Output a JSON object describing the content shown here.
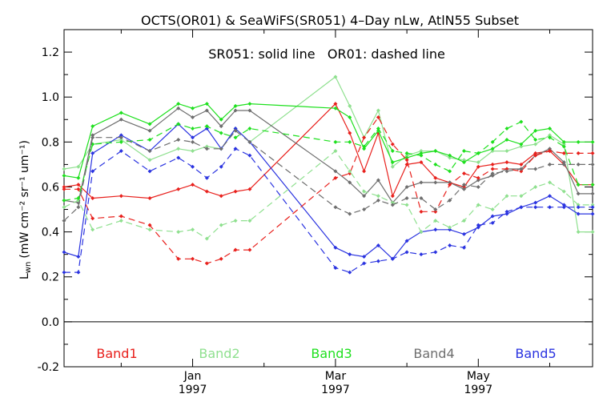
{
  "chart_data": {
    "type": "line",
    "title": "OCTS(OR01) & SeaWiFS(SR051) 4–Day nLw, AtlN55 Subset",
    "subtitle": "SR051: solid line   OR01: dashed line",
    "ylabel": {
      "base": "L",
      "sub": "wn",
      "unit": "(mW cm⁻² sr⁻¹ um⁻¹)"
    },
    "ylim": [
      -0.2,
      1.3
    ],
    "xlim": [
      0,
      37
    ],
    "yticks": [
      "-0.2",
      "0.0",
      "0.2",
      "0.4",
      "0.6",
      "0.8",
      "1.0",
      "1.2"
    ],
    "yticks_values": [
      -0.2,
      0.0,
      0.2,
      0.4,
      0.6,
      0.8,
      1.0,
      1.2
    ],
    "xticks": [
      {
        "x": 9,
        "line1": "Jan",
        "line2": "1997"
      },
      {
        "x": 19,
        "line1": "Mar",
        "line2": "1997"
      },
      {
        "x": 29,
        "line1": "May",
        "line2": "1997"
      }
    ],
    "minor_xticks": [
      4,
      14,
      24,
      34
    ],
    "zero_line": true,
    "x": [
      0,
      1,
      2,
      4,
      6,
      8,
      9,
      10,
      11,
      12,
      13,
      19,
      20,
      21,
      22,
      23,
      24,
      25,
      26,
      27,
      28,
      29,
      30,
      31,
      32,
      33,
      34,
      35,
      36,
      37
    ],
    "legend": [
      {
        "label": "Band1",
        "color": "#e8201c"
      },
      {
        "label": "Band2",
        "color": "#8fe08f"
      },
      {
        "label": "Band3",
        "color": "#1ee01e"
      },
      {
        "label": "Band4",
        "color": "#6e6e6e"
      },
      {
        "label": "Band5",
        "color": "#2a33e0"
      }
    ],
    "series": [
      {
        "name": "Band1",
        "style": "solid",
        "color": "#e8201c",
        "values": [
          0.6,
          0.61,
          0.55,
          0.56,
          0.55,
          0.59,
          0.61,
          0.58,
          0.56,
          0.58,
          0.59,
          0.97,
          0.84,
          0.67,
          0.84,
          0.56,
          0.7,
          0.71,
          0.64,
          0.62,
          0.6,
          0.69,
          0.7,
          0.71,
          0.7,
          0.75,
          0.76,
          0.7,
          0.61,
          0.61
        ]
      },
      {
        "name": "Band2",
        "style": "solid",
        "color": "#8fe08f",
        "values": [
          0.68,
          0.69,
          0.79,
          0.81,
          0.72,
          0.77,
          0.76,
          0.78,
          0.77,
          0.86,
          0.8,
          1.09,
          0.96,
          0.82,
          0.94,
          0.69,
          0.74,
          0.76,
          0.76,
          0.73,
          0.72,
          0.71,
          0.76,
          0.76,
          0.78,
          0.79,
          0.83,
          0.79,
          0.4,
          0.4
        ]
      },
      {
        "name": "Band3",
        "style": "solid",
        "color": "#1ee01e",
        "values": [
          0.65,
          0.64,
          0.87,
          0.93,
          0.88,
          0.97,
          0.95,
          0.97,
          0.9,
          0.96,
          0.97,
          0.95,
          0.91,
          0.77,
          0.85,
          0.71,
          0.73,
          0.75,
          0.76,
          0.74,
          0.71,
          0.75,
          0.77,
          0.81,
          0.79,
          0.85,
          0.86,
          0.8,
          0.8,
          0.8
        ]
      },
      {
        "name": "Band4",
        "style": "solid",
        "color": "#6e6e6e",
        "values": [
          0.54,
          0.53,
          0.83,
          0.9,
          0.85,
          0.95,
          0.91,
          0.94,
          0.87,
          0.94,
          0.94,
          0.67,
          0.62,
          0.56,
          0.63,
          0.53,
          0.6,
          0.62,
          0.62,
          0.62,
          0.59,
          0.63,
          0.65,
          0.68,
          0.68,
          0.74,
          0.77,
          0.71,
          0.57,
          0.57
        ]
      },
      {
        "name": "Band5",
        "style": "solid",
        "color": "#2a33e0",
        "values": [
          0.31,
          0.29,
          0.75,
          0.83,
          0.76,
          0.88,
          0.82,
          0.86,
          0.77,
          0.86,
          0.8,
          0.33,
          0.3,
          0.29,
          0.34,
          0.28,
          0.36,
          0.4,
          0.41,
          0.41,
          0.39,
          0.42,
          0.47,
          0.48,
          0.51,
          0.53,
          0.56,
          0.52,
          0.48,
          0.48
        ]
      },
      {
        "name": "Band1",
        "style": "dashed",
        "color": "#e8201c",
        "values": [
          0.59,
          0.59,
          0.46,
          0.47,
          0.43,
          0.28,
          0.28,
          0.26,
          0.28,
          0.32,
          0.32,
          0.64,
          0.66,
          0.82,
          0.91,
          0.79,
          0.72,
          0.49,
          0.49,
          0.61,
          0.66,
          0.64,
          0.68,
          0.68,
          0.67,
          0.74,
          0.76,
          0.75,
          0.75,
          0.75
        ]
      },
      {
        "name": "Band2",
        "style": "dashed",
        "color": "#8fe08f",
        "values": [
          0.51,
          0.54,
          0.41,
          0.45,
          0.41,
          0.4,
          0.41,
          0.37,
          0.43,
          0.45,
          0.45,
          0.76,
          0.67,
          0.58,
          0.56,
          0.53,
          0.52,
          0.4,
          0.45,
          0.42,
          0.45,
          0.52,
          0.5,
          0.56,
          0.56,
          0.6,
          0.62,
          0.58,
          0.52,
          0.52
        ]
      },
      {
        "name": "Band3",
        "style": "dashed",
        "color": "#1ee01e",
        "values": [
          0.54,
          0.55,
          0.79,
          0.8,
          0.81,
          0.88,
          0.86,
          0.87,
          0.84,
          0.82,
          0.86,
          0.8,
          0.8,
          0.78,
          0.86,
          0.76,
          0.75,
          0.74,
          0.7,
          0.67,
          0.76,
          0.75,
          0.8,
          0.86,
          0.89,
          0.81,
          0.82,
          0.78,
          0.61,
          0.61
        ]
      },
      {
        "name": "Band4",
        "style": "dashed",
        "color": "#6e6e6e",
        "values": [
          0.45,
          0.51,
          0.82,
          0.82,
          0.76,
          0.81,
          0.8,
          0.77,
          0.77,
          0.85,
          0.8,
          0.51,
          0.48,
          0.5,
          0.54,
          0.52,
          0.55,
          0.55,
          0.5,
          0.54,
          0.61,
          0.6,
          0.66,
          0.67,
          0.68,
          0.68,
          0.7,
          0.7,
          0.7,
          0.7
        ]
      },
      {
        "name": "Band5",
        "style": "dashed",
        "color": "#2a33e0",
        "values": [
          0.22,
          0.22,
          0.67,
          0.76,
          0.67,
          0.73,
          0.69,
          0.64,
          0.69,
          0.77,
          0.74,
          0.24,
          0.22,
          0.26,
          0.27,
          0.28,
          0.31,
          0.3,
          0.31,
          0.34,
          0.33,
          0.43,
          0.44,
          0.49,
          0.51,
          0.51,
          0.51,
          0.51,
          0.51,
          0.51
        ]
      }
    ]
  }
}
